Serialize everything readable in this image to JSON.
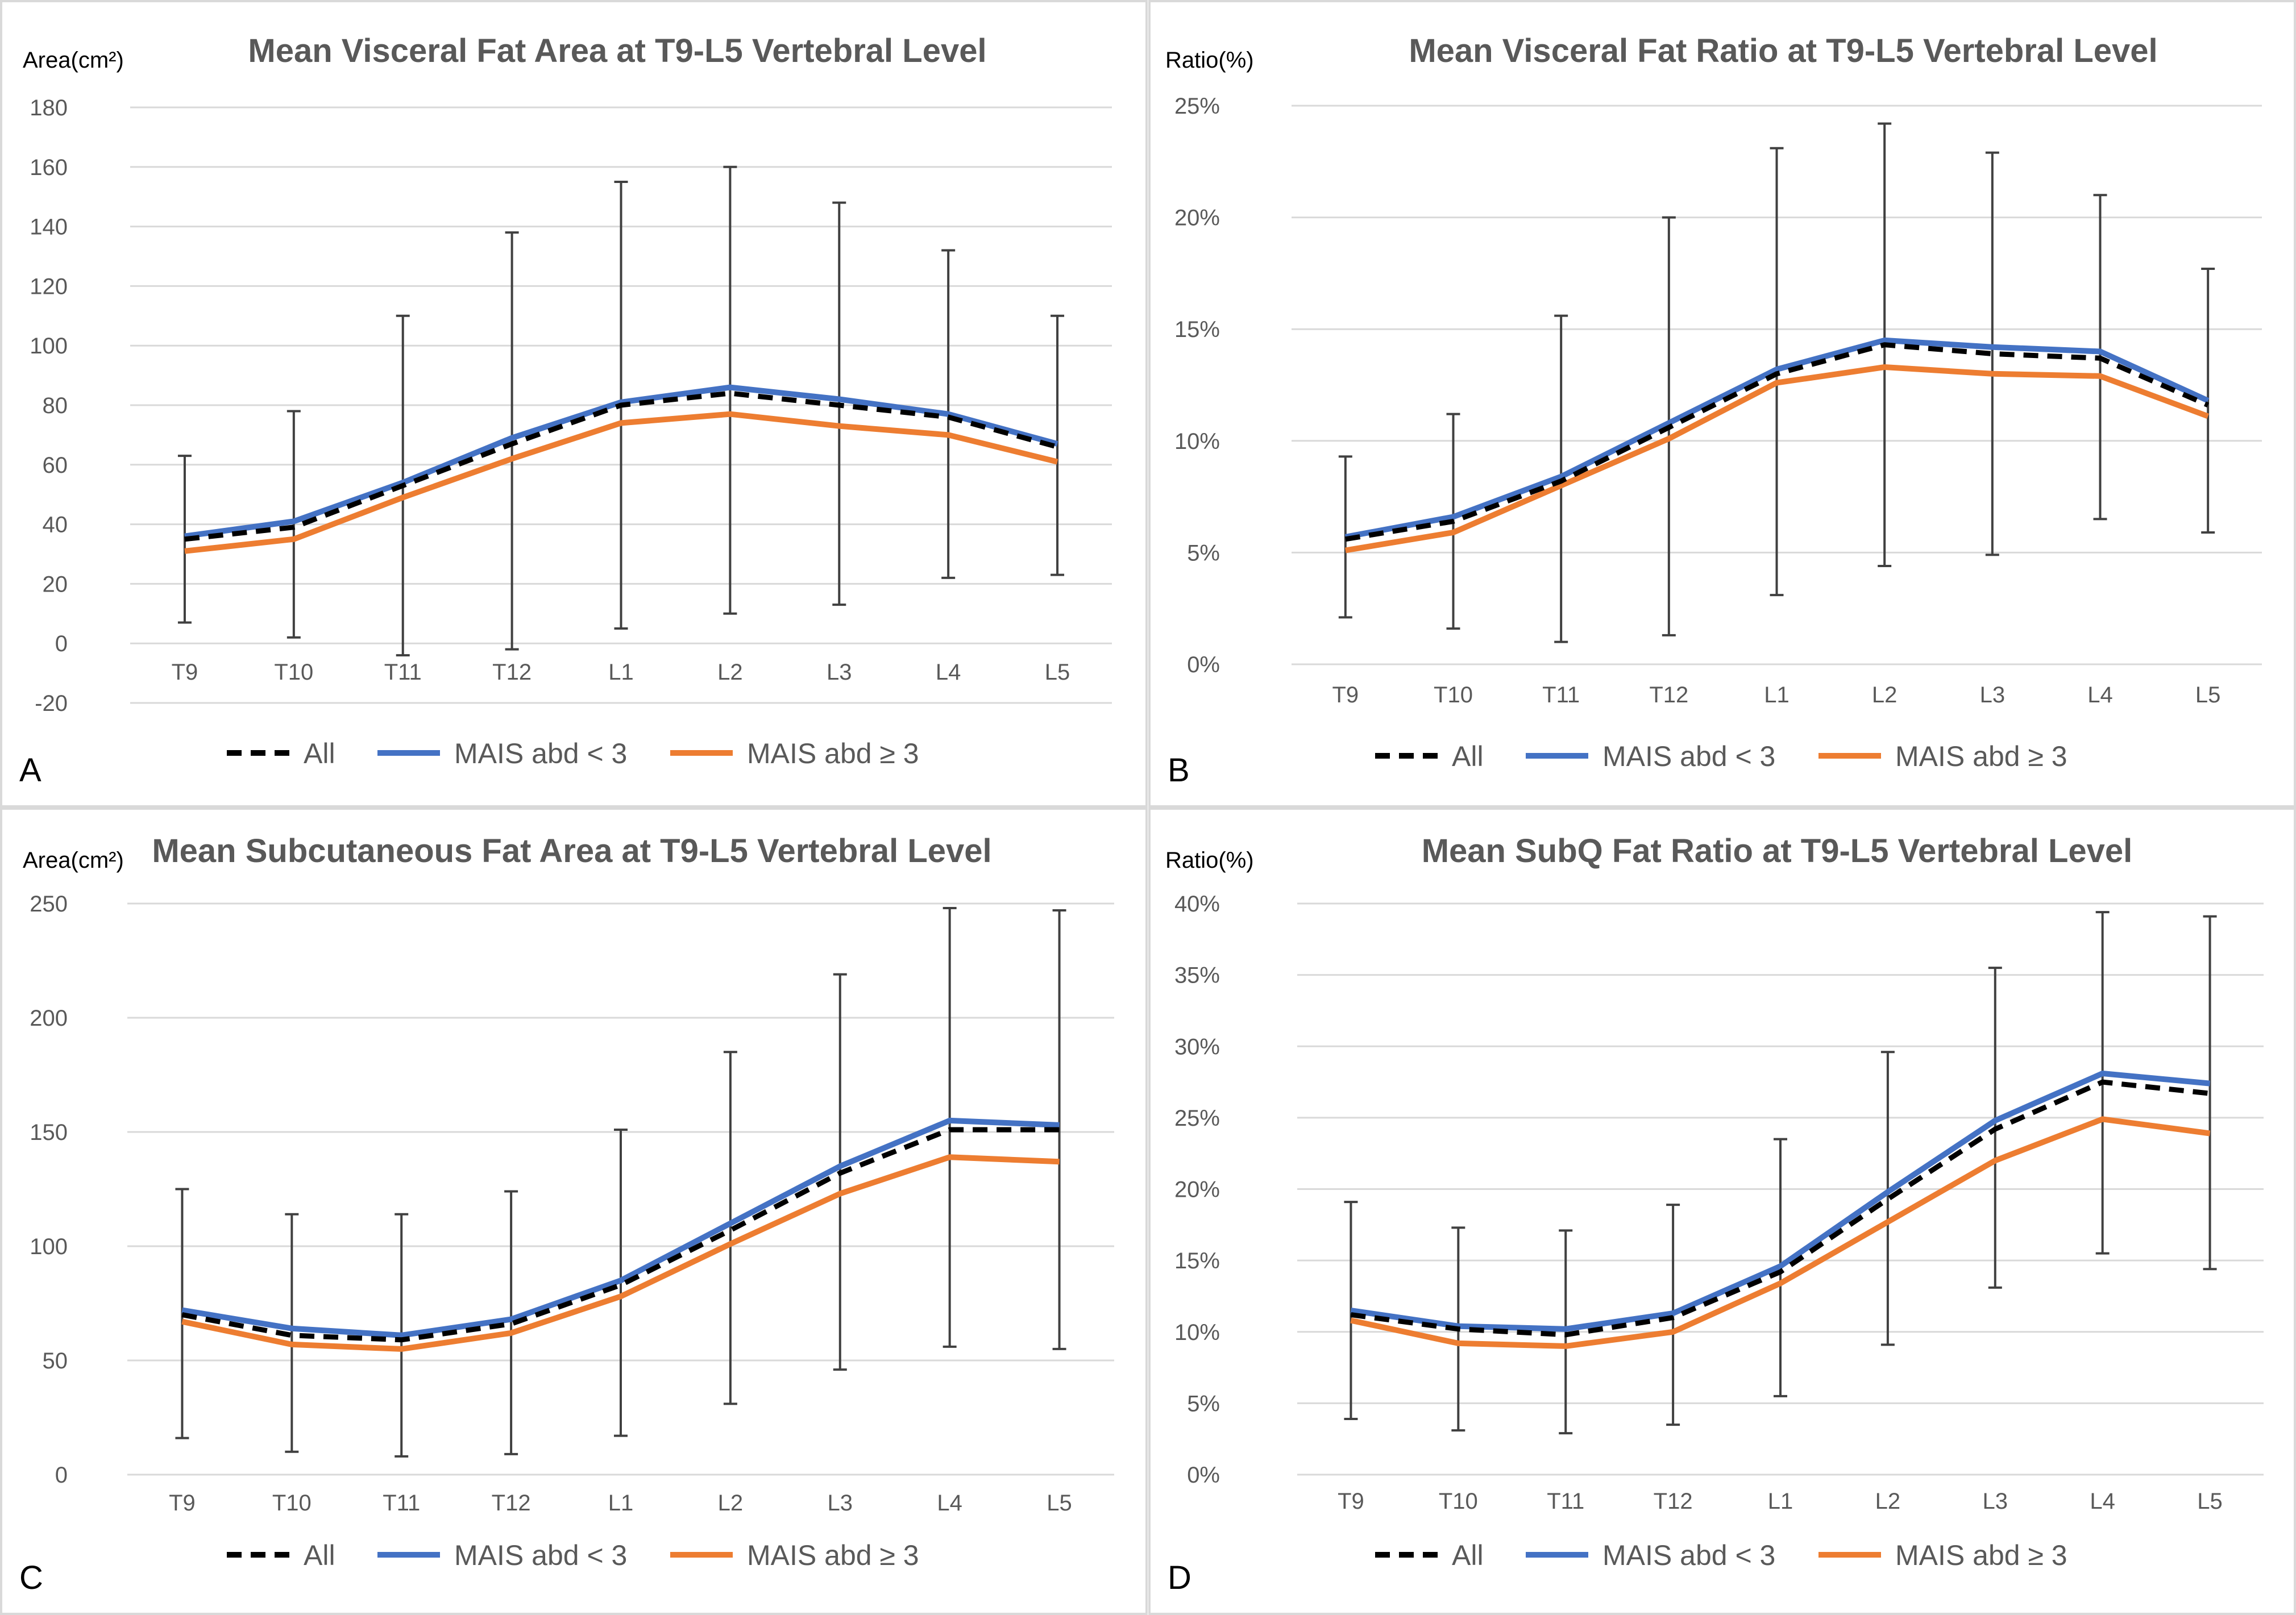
{
  "colors": {
    "all": "#000000",
    "lt3": "#4472c4",
    "ge3": "#ed7d31",
    "grid": "#d9d9d9",
    "error_bar": "#404040"
  },
  "legend": {
    "all": "All",
    "lt3": "MAIS abd < 3",
    "ge3": "MAIS abd  ≥ 3"
  },
  "chart_data": [
    {
      "panel": "A",
      "type": "line",
      "title": "Mean Visceral Fat Area at T9-L5 Vertebral Level",
      "ylabel": "Area(cm²)",
      "y_format": "number",
      "ylim": [
        -20,
        180
      ],
      "yticks": [
        -20,
        0,
        20,
        40,
        60,
        80,
        100,
        120,
        140,
        160,
        180
      ],
      "grid": true,
      "legend_position": "bottom",
      "categories": [
        "T9",
        "T10",
        "T11",
        "T12",
        "L1",
        "L2",
        "L3",
        "L4",
        "L5"
      ],
      "series": [
        {
          "key": "all",
          "name": "All",
          "style": "dashed",
          "values": [
            35,
            39,
            53,
            67,
            80,
            84,
            80,
            76,
            66
          ]
        },
        {
          "key": "lt3",
          "name": "MAIS abd < 3",
          "style": "solid",
          "values": [
            36,
            41,
            54,
            69,
            81,
            86,
            82,
            77,
            67
          ]
        },
        {
          "key": "ge3",
          "name": "MAIS abd  ≥ 3",
          "style": "solid",
          "values": [
            31,
            35,
            49,
            62,
            74,
            77,
            73,
            70,
            61
          ]
        }
      ],
      "error_bars": [
        [
          7,
          63
        ],
        [
          2,
          78
        ],
        [
          -4,
          110
        ],
        [
          -2,
          138
        ],
        [
          5,
          155
        ],
        [
          10,
          160
        ],
        [
          13,
          148
        ],
        [
          22,
          132
        ],
        [
          23,
          110
        ]
      ]
    },
    {
      "panel": "B",
      "type": "line",
      "title": "Mean Visceral Fat Ratio at T9-L5 Vertebral Level",
      "ylabel": "Ratio(%)",
      "y_format": "percent",
      "ylim": [
        0,
        25
      ],
      "yticks": [
        0,
        5,
        10,
        15,
        20,
        25
      ],
      "grid": true,
      "legend_position": "bottom",
      "categories": [
        "T9",
        "T10",
        "T11",
        "T12",
        "L1",
        "L2",
        "L3",
        "L4",
        "L5"
      ],
      "series": [
        {
          "key": "all",
          "name": "All",
          "style": "dashed",
          "values": [
            5.6,
            6.4,
            8.2,
            10.6,
            13.0,
            14.3,
            13.9,
            13.7,
            11.6
          ]
        },
        {
          "key": "lt3",
          "name": "MAIS abd < 3",
          "style": "solid",
          "values": [
            5.7,
            6.6,
            8.4,
            10.8,
            13.2,
            14.5,
            14.2,
            14.0,
            11.8
          ]
        },
        {
          "key": "ge3",
          "name": "MAIS abd  ≥ 3",
          "style": "solid",
          "values": [
            5.1,
            5.9,
            8.0,
            10.1,
            12.6,
            13.3,
            13.0,
            12.9,
            11.1
          ]
        }
      ],
      "error_bars": [
        [
          2.1,
          9.3
        ],
        [
          1.6,
          11.2
        ],
        [
          1.0,
          15.6
        ],
        [
          1.3,
          20.0
        ],
        [
          3.1,
          23.1
        ],
        [
          4.4,
          24.2
        ],
        [
          4.9,
          22.9
        ],
        [
          6.5,
          21.0
        ],
        [
          5.9,
          17.7
        ]
      ]
    },
    {
      "panel": "C",
      "type": "line",
      "title": "Mean Subcutaneous Fat Area at T9-L5 Vertebral Level",
      "ylabel": "Area(cm²)",
      "y_format": "number",
      "ylim": [
        0,
        250
      ],
      "yticks": [
        0,
        50,
        100,
        150,
        200,
        250
      ],
      "grid": true,
      "legend_position": "bottom",
      "categories": [
        "T9",
        "T10",
        "T11",
        "T12",
        "L1",
        "L2",
        "L3",
        "L4",
        "L5"
      ],
      "series": [
        {
          "key": "all",
          "name": "All",
          "style": "dashed",
          "values": [
            70,
            61,
            59,
            66,
            83,
            107,
            132,
            151,
            151
          ]
        },
        {
          "key": "lt3",
          "name": "MAIS abd < 3",
          "style": "solid",
          "values": [
            72,
            64,
            61,
            68,
            85,
            110,
            135,
            155,
            153
          ]
        },
        {
          "key": "ge3",
          "name": "MAIS abd  ≥ 3",
          "style": "solid",
          "values": [
            67,
            57,
            55,
            62,
            78,
            101,
            123,
            139,
            137
          ]
        }
      ],
      "error_bars": [
        [
          16,
          125
        ],
        [
          10,
          114
        ],
        [
          8,
          114
        ],
        [
          9,
          124
        ],
        [
          17,
          151
        ],
        [
          31,
          185
        ],
        [
          46,
          219
        ],
        [
          56,
          248
        ],
        [
          55,
          247
        ]
      ]
    },
    {
      "panel": "D",
      "type": "line",
      "title": "Mean SubQ Fat Ratio at T9-L5 Vertebral Level",
      "ylabel": "Ratio(%)",
      "y_format": "percent",
      "ylim": [
        0,
        40
      ],
      "yticks": [
        0,
        5,
        10,
        15,
        20,
        25,
        30,
        35,
        40
      ],
      "grid": true,
      "legend_position": "bottom",
      "categories": [
        "T9",
        "T10",
        "T11",
        "T12",
        "L1",
        "L2",
        "L3",
        "L4",
        "L5"
      ],
      "series": [
        {
          "key": "all",
          "name": "All",
          "style": "dashed",
          "values": [
            11.2,
            10.2,
            9.8,
            11.0,
            14.2,
            19.3,
            24.2,
            27.5,
            26.7
          ]
        },
        {
          "key": "lt3",
          "name": "MAIS abd < 3",
          "style": "solid",
          "values": [
            11.5,
            10.4,
            10.2,
            11.3,
            14.6,
            19.8,
            24.8,
            28.1,
            27.4
          ]
        },
        {
          "key": "ge3",
          "name": "MAIS abd  ≥ 3",
          "style": "solid",
          "values": [
            10.8,
            9.2,
            9.0,
            10.0,
            13.4,
            17.7,
            22.0,
            24.9,
            23.9
          ]
        }
      ],
      "error_bars": [
        [
          3.9,
          19.1
        ],
        [
          3.1,
          17.3
        ],
        [
          2.9,
          17.1
        ],
        [
          3.5,
          18.9
        ],
        [
          5.5,
          23.5
        ],
        [
          9.1,
          29.6
        ],
        [
          13.1,
          35.5
        ],
        [
          15.5,
          39.4
        ],
        [
          14.4,
          39.1
        ]
      ]
    }
  ]
}
